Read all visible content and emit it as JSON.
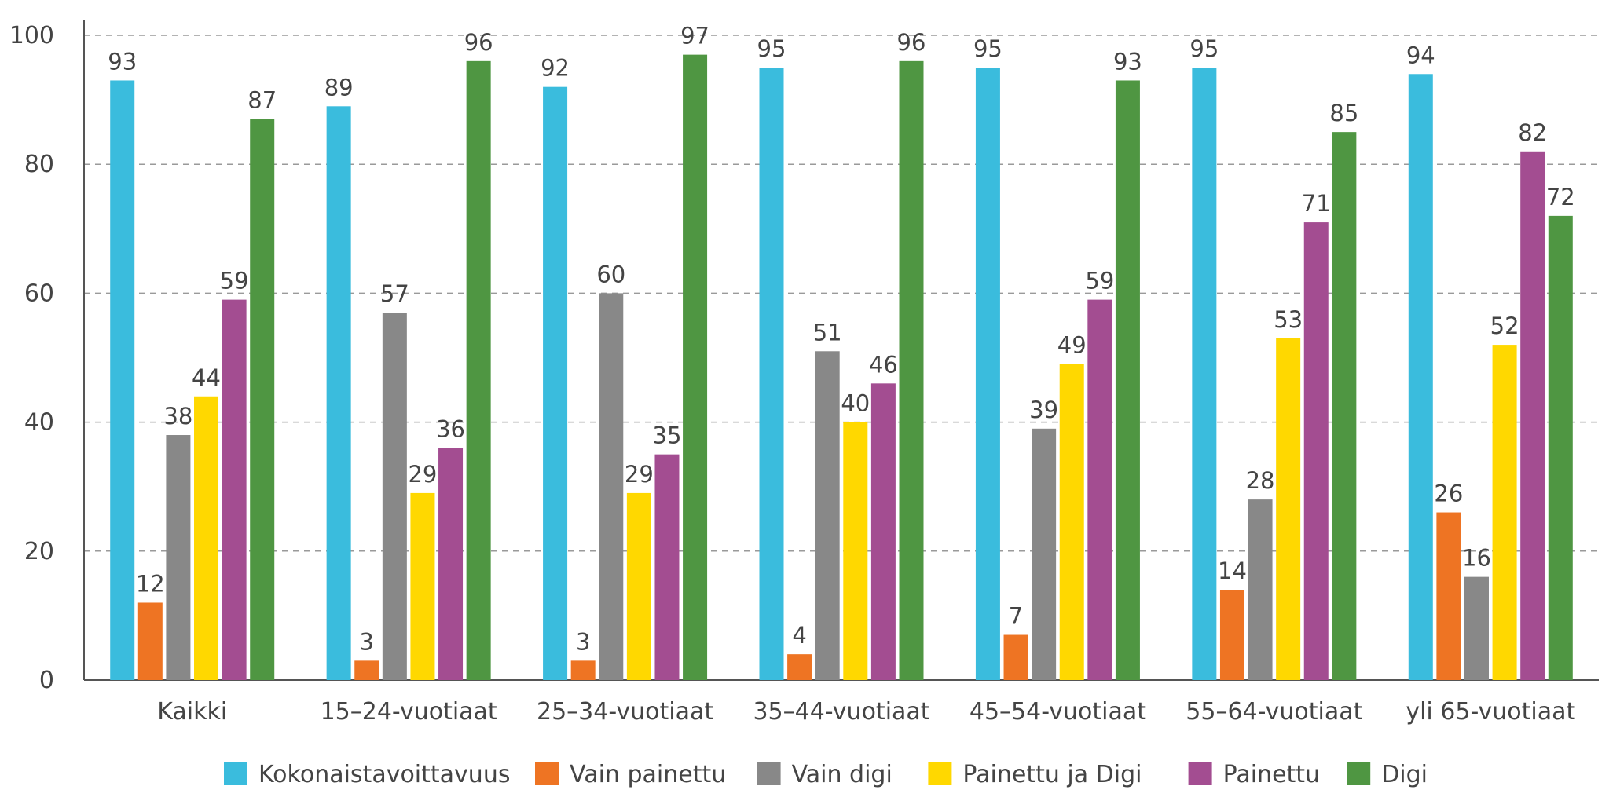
{
  "chart_data": {
    "type": "bar",
    "categories": [
      "Kaikki",
      "15–24-vuotiaat",
      "25–34-vuotiaat",
      "35–44-vuotiaat",
      "45–54-vuotiaat",
      "55–64-vuotiaat",
      "yli 65-vuotiaat"
    ],
    "series": [
      {
        "name": "Kokonaistavoittavuus",
        "color": "#3abcdd",
        "values": [
          93,
          89,
          92,
          95,
          95,
          95,
          94
        ]
      },
      {
        "name": "Vain painettu",
        "color": "#ee7423",
        "values": [
          12,
          3,
          3,
          4,
          7,
          14,
          26
        ]
      },
      {
        "name": "Vain digi",
        "color": "#888888",
        "values": [
          38,
          57,
          60,
          51,
          39,
          28,
          16
        ]
      },
      {
        "name": "Painettu ja Digi",
        "color": "#ffd800",
        "values": [
          44,
          29,
          29,
          40,
          49,
          53,
          52
        ]
      },
      {
        "name": "Painettu",
        "color": "#a34d91",
        "values": [
          59,
          36,
          35,
          46,
          59,
          71,
          82
        ]
      },
      {
        "name": "Digi",
        "color": "#4f9642",
        "values": [
          87,
          96,
          97,
          96,
          93,
          85,
          72
        ]
      }
    ],
    "yticks": [
      0,
      20,
      40,
      60,
      80,
      100
    ],
    "ylim": [
      0,
      100
    ],
    "grid": true,
    "legend_position": "bottom",
    "title": "",
    "xlabel": "",
    "ylabel": ""
  }
}
